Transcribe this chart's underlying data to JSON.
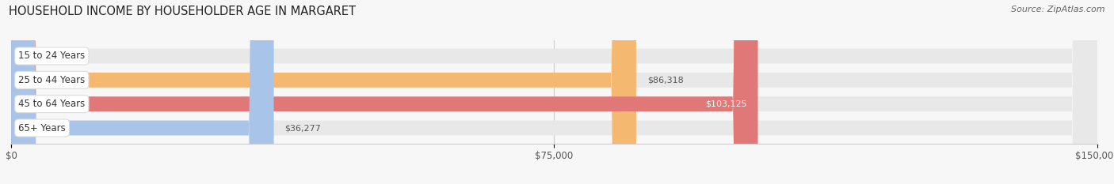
{
  "title": "HOUSEHOLD INCOME BY HOUSEHOLDER AGE IN MARGARET",
  "source": "Source: ZipAtlas.com",
  "categories": [
    "15 to 24 Years",
    "25 to 44 Years",
    "45 to 64 Years",
    "65+ Years"
  ],
  "values": [
    0,
    86318,
    103125,
    36277
  ],
  "bar_colors": [
    "#f5a0b0",
    "#f5b870",
    "#e07878",
    "#a8c4e8"
  ],
  "bar_background": "#e8e8e8",
  "xlim": [
    0,
    150000
  ],
  "xticks": [
    0,
    75000,
    150000
  ],
  "xtick_labels": [
    "$0",
    "$75,000",
    "$150,000"
  ],
  "figsize": [
    14.06,
    2.33
  ],
  "dpi": 100,
  "bar_height": 0.62,
  "background_color": "#f7f7f7",
  "pill_facecolor": "white",
  "pill_edgecolor": "#dddddd",
  "value_label_inside_color": "white",
  "value_label_outside_color": "#555555"
}
